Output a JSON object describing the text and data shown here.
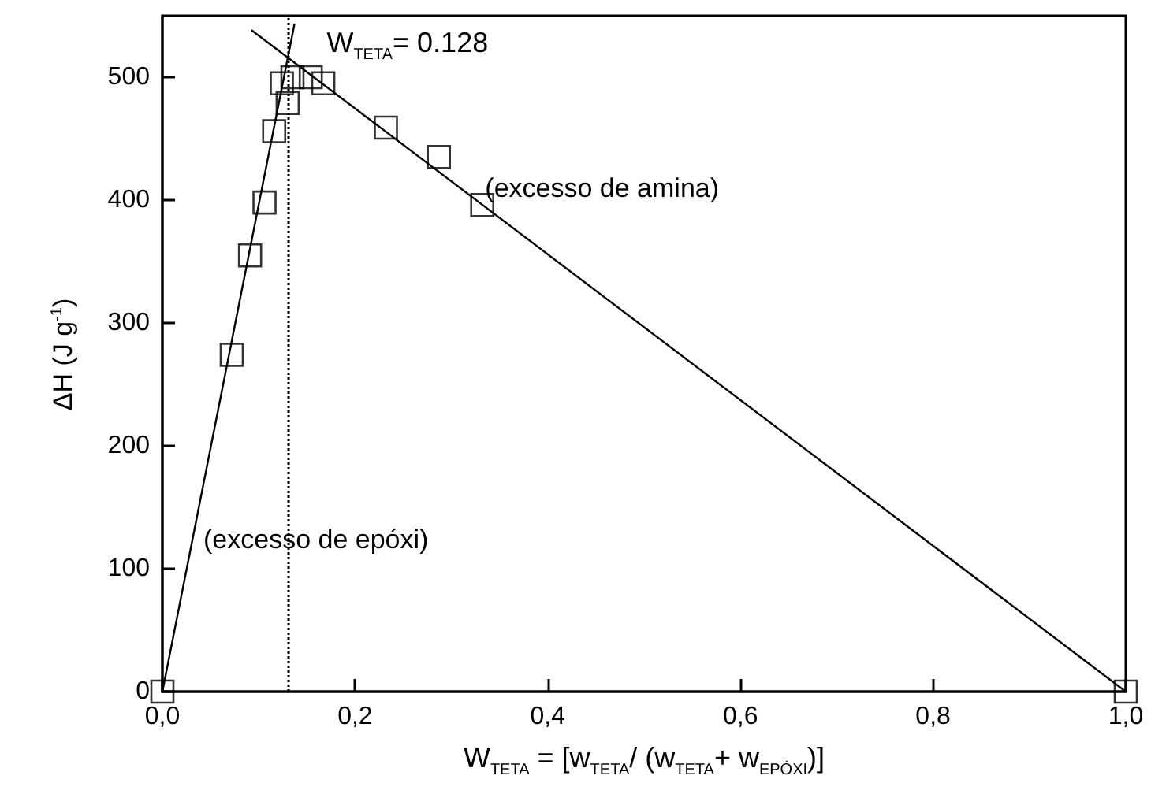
{
  "chart_data": {
    "type": "scatter",
    "xlabel": "W$_{TETA}$   =  [w$_{TETA}$/ (w$_{TETA}$+  w$_{EPÓXI}$)]",
    "ylabel": "ΔH  (J g$^{-1}$)",
    "xlim": [
      0,
      1
    ],
    "ylim": [
      0,
      550
    ],
    "xticks": [
      {
        "value": 0,
        "label": "0,0"
      },
      {
        "value": 0.2,
        "label": "0,2"
      },
      {
        "value": 0.4,
        "label": "0,4"
      },
      {
        "value": 0.6,
        "label": "0,6"
      },
      {
        "value": 0.8,
        "label": "0,8"
      },
      {
        "value": 1,
        "label": "1,0"
      }
    ],
    "yticks": [
      0,
      100,
      200,
      300,
      400,
      500
    ],
    "marker": "square",
    "series": [
      {
        "type": "scatter",
        "color": "#000000",
        "x": [
          0,
          0.072,
          0.091,
          0.106,
          0.116,
          0.124,
          0.13,
          0.135,
          0.154,
          0.167,
          0.232,
          0.287,
          0.332,
          1.0
        ],
        "values": [
          0,
          274,
          355,
          398,
          456,
          495,
          479,
          500,
          500,
          495,
          459,
          435,
          396,
          0
        ]
      },
      {
        "type": "line",
        "color": "#000000",
        "marker": "none",
        "line_style": "solid",
        "x": [
          0,
          0.137
        ],
        "values": [
          0,
          543
        ]
      },
      {
        "type": "line",
        "color": "#000000",
        "marker": "none",
        "line_style": "solid",
        "x": [
          0.093,
          1.0
        ],
        "values": [
          538,
          0
        ]
      }
    ],
    "ref_lines": [
      {
        "axis": "x",
        "value": 0.128,
        "label": "W$_{TETA}$= 0.128",
        "line_style": "dotted",
        "color": "#000000"
      }
    ],
    "annotations": [
      {
        "text": "(excesso de amina)",
        "x": 0.335,
        "y": 400
      },
      "(excesso de epóxi)"
    ],
    "grid": false
  }
}
